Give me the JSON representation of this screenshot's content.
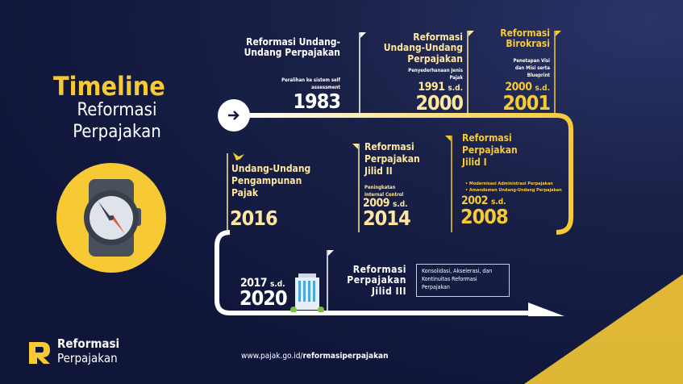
{
  "title": {
    "line1": "Timeline",
    "line2": "Reformasi",
    "line3": "Perpajakan"
  },
  "colors": {
    "background": "#131a3a",
    "accent": "#f6c935",
    "white": "#ffffff"
  },
  "milestones": [
    {
      "title": "Reformasi Undang-Undang Perpajakan",
      "desc": "Peralihan ke sistem self assessment",
      "year": "1983"
    },
    {
      "title": "Reformasi Undang-Undang Perpajakan",
      "desc": "Penyederhanaan Jenis Pajak",
      "from": "1991",
      "sd": "s.d.",
      "year": "2000"
    },
    {
      "title": "Reformasi Birokrasi",
      "desc": "Penetapan Visi dan Misi serta Blueprint",
      "from": "2000",
      "sd": "s.d.",
      "year": "2001"
    },
    {
      "title": "Reformasi Perpajakan Jilid I",
      "bullets": [
        "Modernisasi Administrasi Perpajakan",
        "Amandemen Undang-Undang Perpajakan"
      ],
      "from": "2002",
      "sd": "s.d.",
      "year": "2008"
    },
    {
      "title": "Reformasi Perpajakan Jilid II",
      "desc": "Peningkatan Internal Control",
      "from": "2009",
      "sd": "s.d.",
      "year": "2014"
    },
    {
      "title": "Undang-Undang Pengampunan Pajak",
      "year": "2016"
    },
    {
      "title": "Reformasi Perpajakan Jilid III",
      "desc": "Konsolidasi, Akselerasi, dan Kontinuitas Reformasi Perpajakan",
      "from": "2017",
      "sd": "s.d.",
      "year": "2020"
    }
  ],
  "logo": {
    "line1": "Reformasi",
    "line2": "Perpajakan"
  },
  "url": {
    "prefix": "www.pajak.go.id/",
    "bold": "reformasiperpajakan"
  },
  "icons": [
    "watch-icon",
    "arrow-right-icon",
    "garuda-icon",
    "building-icon"
  ]
}
